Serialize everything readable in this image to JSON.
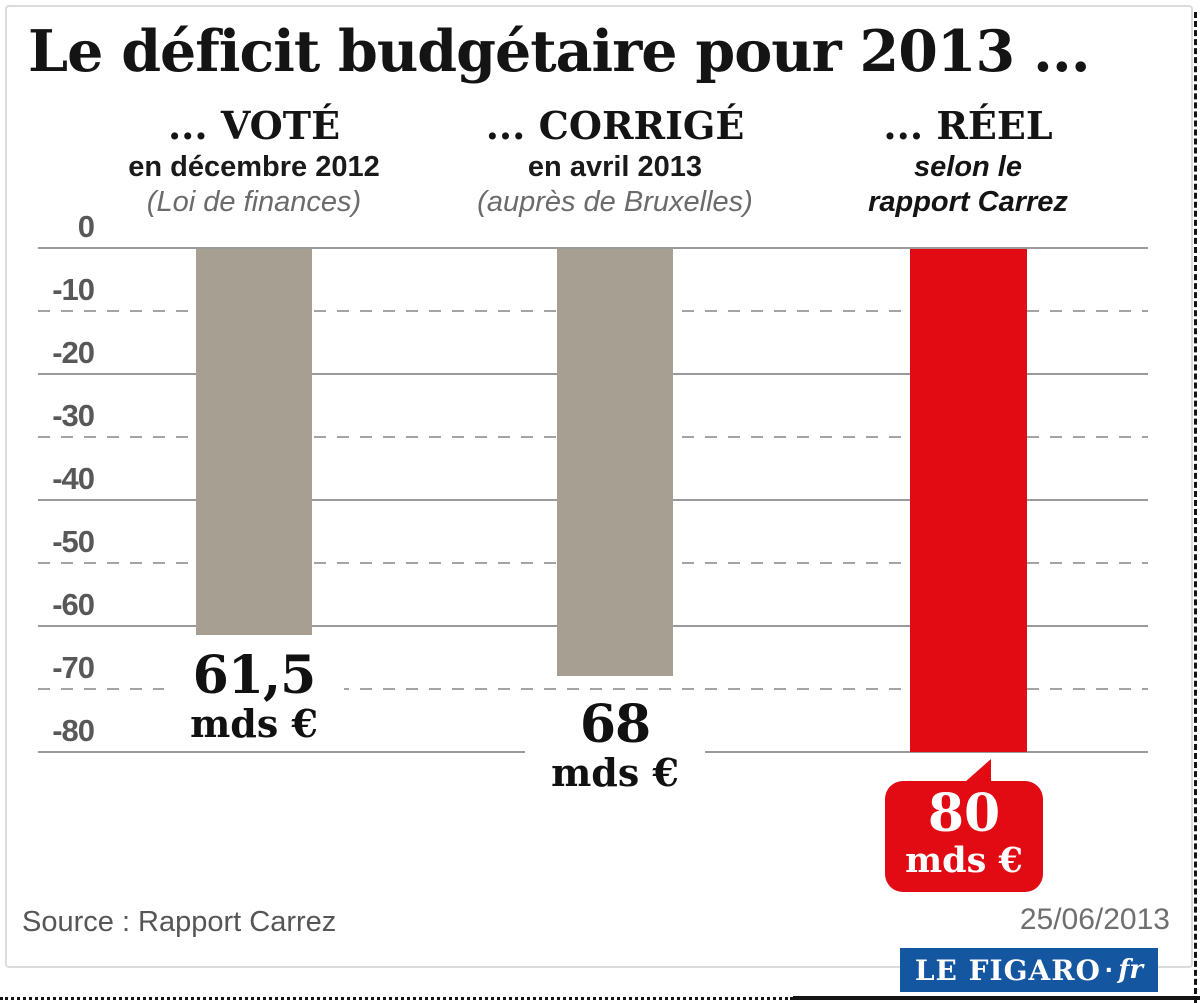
{
  "title": "Le déficit budgétaire pour 2013 ...",
  "columns": [
    {
      "heading": "... VOTÉ",
      "sub": "en décembre 2012",
      "note": "(Loi de finances)"
    },
    {
      "heading": "... CORRIGÉ",
      "sub": "en avril 2013",
      "note": "(auprès de Bruxelles)"
    },
    {
      "heading": "... RÉEL",
      "sub": "selon le",
      "note": "rapport Carrez"
    }
  ],
  "ticks": [
    "0",
    "-10",
    "-20",
    "-30",
    "-40",
    "-50",
    "-60",
    "-70",
    "-80"
  ],
  "values": [
    {
      "amount": "61,5",
      "unit": "mds €"
    },
    {
      "amount": "68",
      "unit": "mds €"
    },
    {
      "amount": "80",
      "unit": "mds €"
    }
  ],
  "footer": {
    "source": "Source : Rapport Carrez",
    "date": "25/06/2013",
    "logo_main": "LE FIGARO",
    "logo_dot": "·",
    "logo_suffix": "fr"
  },
  "colors": {
    "bar_grey": "#a89f93",
    "bar_red": "#e30b13",
    "gridline": "#9a9a9a",
    "figaro_blue": "#1556a0",
    "note_grey": "#6b6b6b"
  },
  "chart_data": {
    "type": "bar",
    "title": "Le déficit budgétaire pour 2013 ...",
    "categories": [
      "... VOTÉ en décembre 2012 (Loi de finances)",
      "... CORRIGÉ en avril 2013 (auprès de Bruxelles)",
      "... RÉEL selon le rapport Carrez"
    ],
    "values": [
      -61.5,
      -68,
      -80
    ],
    "data_labels": [
      "61,5 mds €",
      "68 mds €",
      "80 mds €"
    ],
    "unit": "mds €",
    "ylabel": "",
    "xlabel": "",
    "ylim": [
      -80,
      0
    ],
    "yticks": [
      0,
      -10,
      -20,
      -30,
      -40,
      -50,
      -60,
      -70,
      -80
    ],
    "grid": "horizontal, alternating solid (0,-20,-40,-60,-80) and dashed (-10,-30,-50,-70)",
    "bar_colors": [
      "#a89f93",
      "#a89f93",
      "#e30b13"
    ],
    "legend": "none",
    "source": "Source : Rapport Carrez",
    "date": "25/06/2013"
  }
}
